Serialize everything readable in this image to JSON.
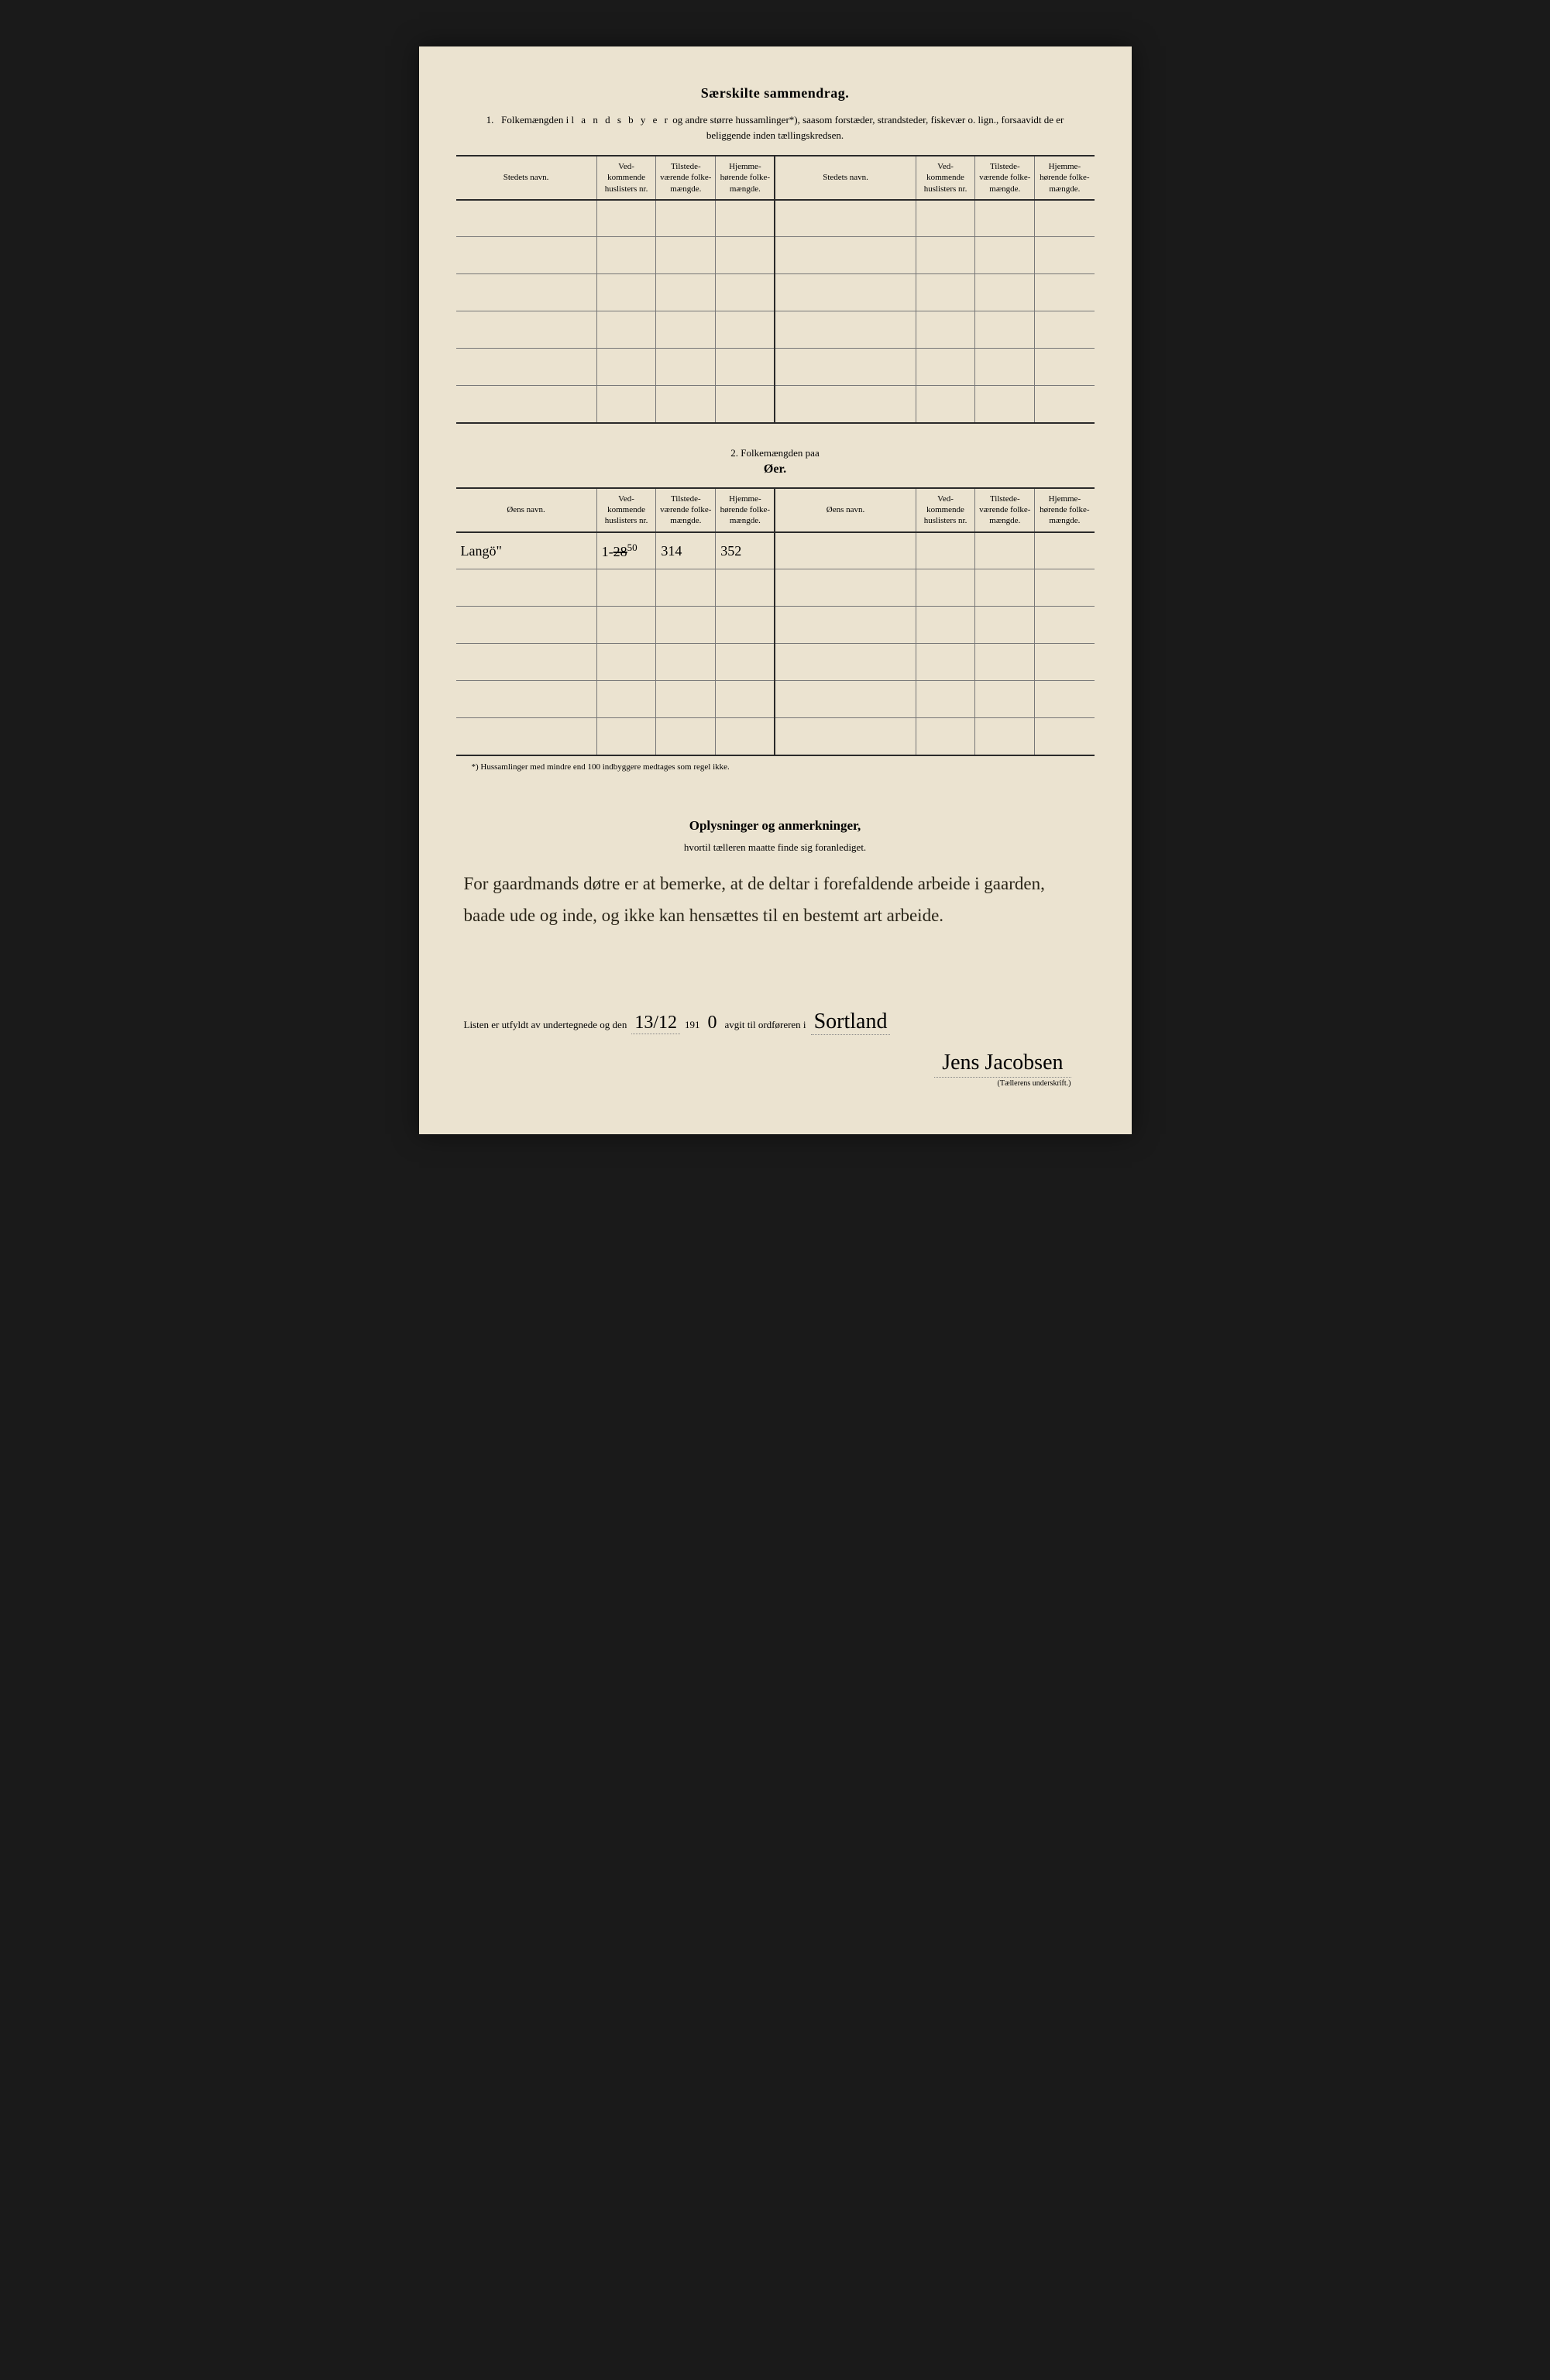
{
  "colors": {
    "page_bg": "#ebe3d0",
    "frame_bg": "#1a1a1a",
    "ink": "#2a2a2a",
    "rule_thin": "#777"
  },
  "header": {
    "title": "Særskilte sammendrag.",
    "intro_num": "1.",
    "intro_a": "Folkemængden i ",
    "intro_spaced": "l a n d s b y e r",
    "intro_b": " og andre større hussamlinger*), saasom forstæder, strandsteder, fiskevær o. lign., forsaavidt de er beliggende inden tællingskredsen."
  },
  "table1": {
    "cols": {
      "name": "Stedets navn.",
      "huslisters": "Ved-\nkommende\nhuslisters\nnr.",
      "tilstede": "Tilstede-\nværende\nfolke-\nmængde.",
      "hjemme": "Hjemme-\nhørende\nfolke-\nmængde."
    },
    "rows": [
      {
        "name": "",
        "huslisters": "",
        "tilstede": "",
        "hjemme": "",
        "name2": "",
        "huslisters2": "",
        "tilstede2": "",
        "hjemme2": ""
      },
      {
        "name": "",
        "huslisters": "",
        "tilstede": "",
        "hjemme": "",
        "name2": "",
        "huslisters2": "",
        "tilstede2": "",
        "hjemme2": ""
      },
      {
        "name": "",
        "huslisters": "",
        "tilstede": "",
        "hjemme": "",
        "name2": "",
        "huslisters2": "",
        "tilstede2": "",
        "hjemme2": ""
      },
      {
        "name": "",
        "huslisters": "",
        "tilstede": "",
        "hjemme": "",
        "name2": "",
        "huslisters2": "",
        "tilstede2": "",
        "hjemme2": ""
      },
      {
        "name": "",
        "huslisters": "",
        "tilstede": "",
        "hjemme": "",
        "name2": "",
        "huslisters2": "",
        "tilstede2": "",
        "hjemme2": ""
      },
      {
        "name": "",
        "huslisters": "",
        "tilstede": "",
        "hjemme": "",
        "name2": "",
        "huslisters2": "",
        "tilstede2": "",
        "hjemme2": ""
      }
    ]
  },
  "section2": {
    "lead": "2.   Folkemængden paa",
    "title": "Øer."
  },
  "table2": {
    "cols": {
      "name": "Øens navn.",
      "huslisters": "Ved-\nkommende\nhuslisters\nnr.",
      "tilstede": "Tilstede-\nværende\nfolke-\nmængde.",
      "hjemme": "Hjemme-\nhørende\nfolke-\nmængde."
    },
    "rows": [
      {
        "name": "Langö\"",
        "huslisters_pre": "1-",
        "huslisters_strike": "28",
        "huslisters_sup": "50",
        "tilstede": "314",
        "hjemme": "352",
        "name2": "",
        "huslisters2": "",
        "tilstede2": "",
        "hjemme2": ""
      },
      {
        "name": "",
        "huslisters": "",
        "tilstede": "",
        "hjemme": "",
        "name2": "",
        "huslisters2": "",
        "tilstede2": "",
        "hjemme2": ""
      },
      {
        "name": "",
        "huslisters": "",
        "tilstede": "",
        "hjemme": "",
        "name2": "",
        "huslisters2": "",
        "tilstede2": "",
        "hjemme2": ""
      },
      {
        "name": "",
        "huslisters": "",
        "tilstede": "",
        "hjemme": "",
        "name2": "",
        "huslisters2": "",
        "tilstede2": "",
        "hjemme2": ""
      },
      {
        "name": "",
        "huslisters": "",
        "tilstede": "",
        "hjemme": "",
        "name2": "",
        "huslisters2": "",
        "tilstede2": "",
        "hjemme2": ""
      },
      {
        "name": "",
        "huslisters": "",
        "tilstede": "",
        "hjemme": "",
        "name2": "",
        "huslisters2": "",
        "tilstede2": "",
        "hjemme2": ""
      }
    ]
  },
  "footnote": "*) Hussamlinger med mindre end 100 indbyggere medtages som regel ikke.",
  "notes": {
    "title": "Oplysninger og anmerkninger,",
    "sub": "hvortil tælleren maatte finde sig foranlediget.",
    "body": "For gaardmands døtre er at bemerke, at de deltar i forefaldende arbeide i gaarden, baade ude og inde, og ikke kan hensættes til en bestemt art arbeide."
  },
  "signature": {
    "prefix": "Listen er utfyldt av undertegnede og den",
    "date": "13/12",
    "mid1": "191",
    "year_last": "0",
    "mid2": "avgit til ordføreren i",
    "place": "Sortland",
    "name": "Jens Jacobsen",
    "caption": "(Tællerens underskrift.)"
  }
}
